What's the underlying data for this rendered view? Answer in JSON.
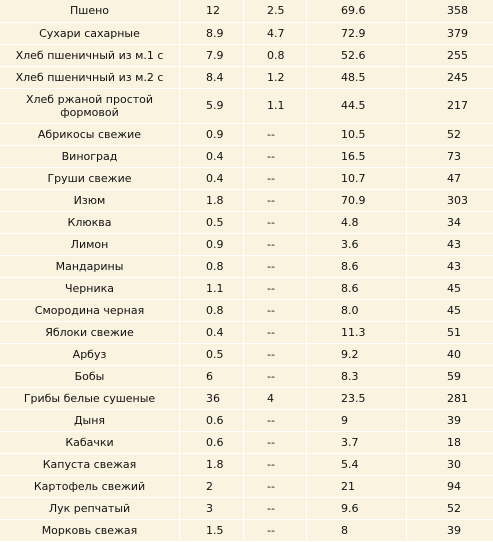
{
  "rows": [
    {
      "name": "Пшено",
      "v1": "12",
      "v2": "2.5",
      "v3": "69.6",
      "v4": "358"
    },
    {
      "name": "Сухари сахарные",
      "v1": "8.9",
      "v2": "4.7",
      "v3": "72.9",
      "v4": "379"
    },
    {
      "name": "Хлеб пшеничный из м.1 с",
      "v1": "7.9",
      "v2": "0.8",
      "v3": "52.6",
      "v4": "255"
    },
    {
      "name": "Хлеб пшеничный из м.2 с",
      "v1": "8.4",
      "v2": "1.2",
      "v3": "48.5",
      "v4": "245"
    },
    {
      "name": "Хлеб ржаной простой формовой",
      "v1": "5.9",
      "v2": "1.1",
      "v3": "44.5",
      "v4": "217",
      "tall": true
    },
    {
      "name": "Абрикосы свежие",
      "v1": "0.9",
      "v2": "--",
      "v3": "10.5",
      "v4": "52"
    },
    {
      "name": "Виноград",
      "v1": "0.4",
      "v2": "--",
      "v3": "16.5",
      "v4": "73"
    },
    {
      "name": "Груши свежие",
      "v1": "0.4",
      "v2": "--",
      "v3": "10.7",
      "v4": "47"
    },
    {
      "name": "Изюм",
      "v1": "1.8",
      "v2": "--",
      "v3": "70.9",
      "v4": "303"
    },
    {
      "name": "Клюква",
      "v1": "0.5",
      "v2": "--",
      "v3": "4.8",
      "v4": "34"
    },
    {
      "name": "Лимон",
      "v1": "0.9",
      "v2": "--",
      "v3": "3.6",
      "v4": "43"
    },
    {
      "name": "Мандарины",
      "v1": "0.8",
      "v2": "--",
      "v3": "8.6",
      "v4": "43"
    },
    {
      "name": "Черника",
      "v1": "1.1",
      "v2": "--",
      "v3": "8.6",
      "v4": "45"
    },
    {
      "name": "Смородина черная",
      "v1": "0.8",
      "v2": "--",
      "v3": "8.0",
      "v4": "45"
    },
    {
      "name": "Яблоки свежие",
      "v1": "0.4",
      "v2": "--",
      "v3": "11.3",
      "v4": "51"
    },
    {
      "name": "Арбуз",
      "v1": "0.5",
      "v2": "--",
      "v3": "9.2",
      "v4": "40"
    },
    {
      "name": "Бобы",
      "v1": "6",
      "v2": "--",
      "v3": "8.3",
      "v4": "59"
    },
    {
      "name": "Грибы белые сушеные",
      "v1": "36",
      "v2": "4",
      "v3": "23.5",
      "v4": "281"
    },
    {
      "name": "Дыня",
      "v1": "0.6",
      "v2": "--",
      "v3": "9",
      "v4": "39"
    },
    {
      "name": "Кабачки",
      "v1": "0.6",
      "v2": "--",
      "v3": "3.7",
      "v4": "18"
    },
    {
      "name": "Капуста свежая",
      "v1": "1.8",
      "v2": "--",
      "v3": "5.4",
      "v4": "30"
    },
    {
      "name": "Картофель свежий",
      "v1": "2",
      "v2": "--",
      "v3": "21",
      "v4": "94"
    },
    {
      "name": "Лук репчатый",
      "v1": "3",
      "v2": "--",
      "v3": "9.6",
      "v4": "52"
    },
    {
      "name": "Морковь свежая",
      "v1": "1.5",
      "v2": "--",
      "v3": "8",
      "v4": "39"
    }
  ]
}
